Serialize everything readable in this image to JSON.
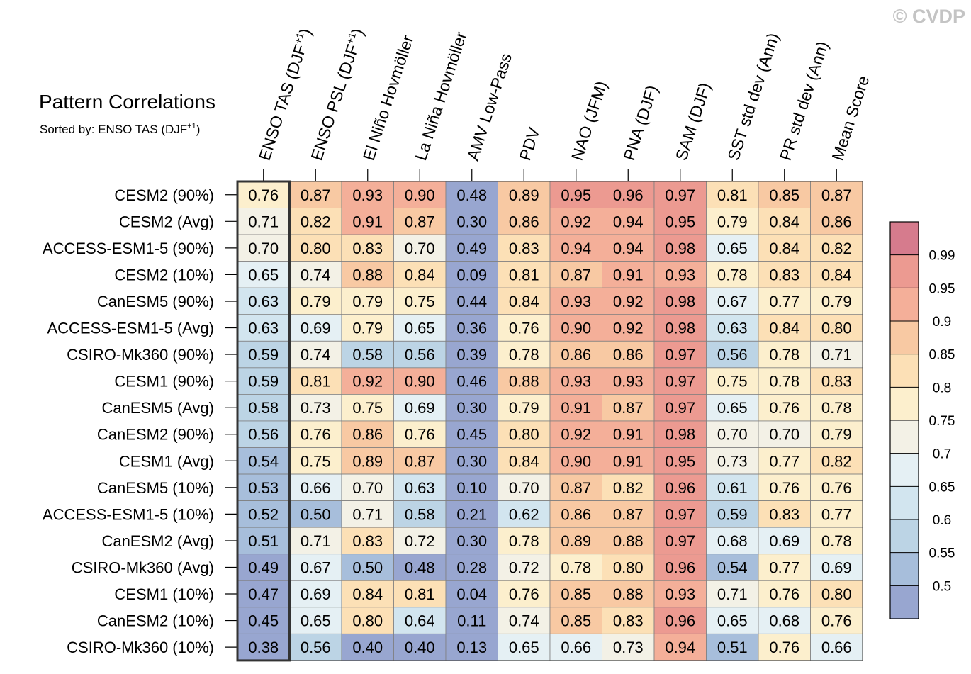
{
  "watermark": "© CVDP",
  "chart_data": {
    "type": "heatmap",
    "title": "Pattern Correlations",
    "subtitle": "Sorted by: ENSO TAS (DJF",
    "subtitle_sup": "+1",
    "subtitle_end": ")",
    "columns": [
      {
        "text": "ENSO TAS (DJF",
        "sup": "+1",
        "end": ")"
      },
      {
        "text": "ENSO PSL (DJF",
        "sup": "+1",
        "end": ")"
      },
      {
        "text": "El Niño Hovmöller",
        "sup": "",
        "end": ""
      },
      {
        "text": "La Niña Hovmöller",
        "sup": "",
        "end": ""
      },
      {
        "text": "AMV Low-Pass",
        "sup": "",
        "end": ""
      },
      {
        "text": "PDV",
        "sup": "",
        "end": ""
      },
      {
        "text": "NAO (JFM)",
        "sup": "",
        "end": ""
      },
      {
        "text": "PNA (DJF)",
        "sup": "",
        "end": ""
      },
      {
        "text": "SAM (DJF)",
        "sup": "",
        "end": ""
      },
      {
        "text": "SST std dev (Ann)",
        "sup": "",
        "end": ""
      },
      {
        "text": "PR std dev (Ann)",
        "sup": "",
        "end": ""
      },
      {
        "text": "Mean Score",
        "sup": "",
        "end": ""
      }
    ],
    "rows": [
      "CESM2 (90%)",
      "CESM2 (Avg)",
      "ACCESS-ESM1-5 (90%)",
      "CESM2 (10%)",
      "CanESM5 (90%)",
      "ACCESS-ESM1-5 (Avg)",
      "CSIRO-Mk360 (90%)",
      "CESM1 (90%)",
      "CanESM5 (Avg)",
      "CanESM2 (90%)",
      "CESM1 (Avg)",
      "CanESM5 (10%)",
      "ACCESS-ESM1-5 (10%)",
      "CanESM2 (Avg)",
      "CSIRO-Mk360 (Avg)",
      "CESM1 (10%)",
      "CanESM2 (10%)",
      "CSIRO-Mk360 (10%)"
    ],
    "values": [
      [
        0.76,
        0.87,
        0.93,
        0.9,
        0.48,
        0.89,
        0.95,
        0.96,
        0.97,
        0.81,
        0.85,
        0.87
      ],
      [
        0.71,
        0.82,
        0.91,
        0.87,
        0.3,
        0.86,
        0.92,
        0.94,
        0.95,
        0.79,
        0.84,
        0.86
      ],
      [
        0.7,
        0.8,
        0.83,
        0.7,
        0.49,
        0.83,
        0.94,
        0.94,
        0.98,
        0.65,
        0.84,
        0.82
      ],
      [
        0.65,
        0.74,
        0.88,
        0.84,
        0.09,
        0.81,
        0.87,
        0.91,
        0.93,
        0.78,
        0.83,
        0.84
      ],
      [
        0.63,
        0.79,
        0.79,
        0.75,
        0.44,
        0.84,
        0.93,
        0.92,
        0.98,
        0.67,
        0.77,
        0.79
      ],
      [
        0.63,
        0.69,
        0.79,
        0.65,
        0.36,
        0.76,
        0.9,
        0.92,
        0.98,
        0.63,
        0.84,
        0.8
      ],
      [
        0.59,
        0.74,
        0.58,
        0.56,
        0.39,
        0.78,
        0.86,
        0.86,
        0.97,
        0.56,
        0.78,
        0.71
      ],
      [
        0.59,
        0.81,
        0.92,
        0.9,
        0.46,
        0.88,
        0.93,
        0.93,
        0.97,
        0.75,
        0.78,
        0.83
      ],
      [
        0.58,
        0.73,
        0.75,
        0.69,
        0.3,
        0.79,
        0.91,
        0.87,
        0.97,
        0.65,
        0.76,
        0.78
      ],
      [
        0.56,
        0.76,
        0.86,
        0.76,
        0.45,
        0.8,
        0.92,
        0.91,
        0.98,
        0.7,
        0.7,
        0.79
      ],
      [
        0.54,
        0.75,
        0.89,
        0.87,
        0.3,
        0.84,
        0.9,
        0.91,
        0.95,
        0.73,
        0.77,
        0.82
      ],
      [
        0.53,
        0.66,
        0.7,
        0.63,
        0.1,
        0.7,
        0.87,
        0.82,
        0.96,
        0.61,
        0.76,
        0.76
      ],
      [
        0.52,
        0.5,
        0.71,
        0.58,
        0.21,
        0.62,
        0.86,
        0.87,
        0.97,
        0.59,
        0.83,
        0.77
      ],
      [
        0.51,
        0.71,
        0.83,
        0.72,
        0.3,
        0.78,
        0.89,
        0.88,
        0.97,
        0.68,
        0.69,
        0.78
      ],
      [
        0.49,
        0.67,
        0.5,
        0.48,
        0.28,
        0.72,
        0.78,
        0.8,
        0.96,
        0.54,
        0.77,
        0.69
      ],
      [
        0.47,
        0.69,
        0.84,
        0.81,
        0.04,
        0.76,
        0.85,
        0.88,
        0.93,
        0.71,
        0.76,
        0.8
      ],
      [
        0.45,
        0.65,
        0.8,
        0.64,
        0.11,
        0.74,
        0.85,
        0.83,
        0.96,
        0.65,
        0.68,
        0.76
      ],
      [
        0.38,
        0.56,
        0.4,
        0.4,
        0.13,
        0.65,
        0.66,
        0.73,
        0.94,
        0.51,
        0.76,
        0.66
      ]
    ],
    "highlighted_column": 0,
    "colorbar": {
      "levels": [
        0.5,
        0.55,
        0.6,
        0.65,
        0.7,
        0.75,
        0.8,
        0.85,
        0.9,
        0.95,
        0.99
      ],
      "tick_labels": [
        "0.5",
        "0.55",
        "0.6",
        "0.65",
        "0.7",
        "0.75",
        "0.8",
        "0.85",
        "0.9",
        "0.95",
        "0.99"
      ],
      "colors": [
        "#98a6d0",
        "#a7bedb",
        "#bcd4e5",
        "#d2e5ef",
        "#e5f0f4",
        "#f3f1e6",
        "#fcefcd",
        "#fce0b6",
        "#f8c9a3",
        "#f4af99",
        "#ec9a91",
        "#d67b8d"
      ]
    }
  }
}
